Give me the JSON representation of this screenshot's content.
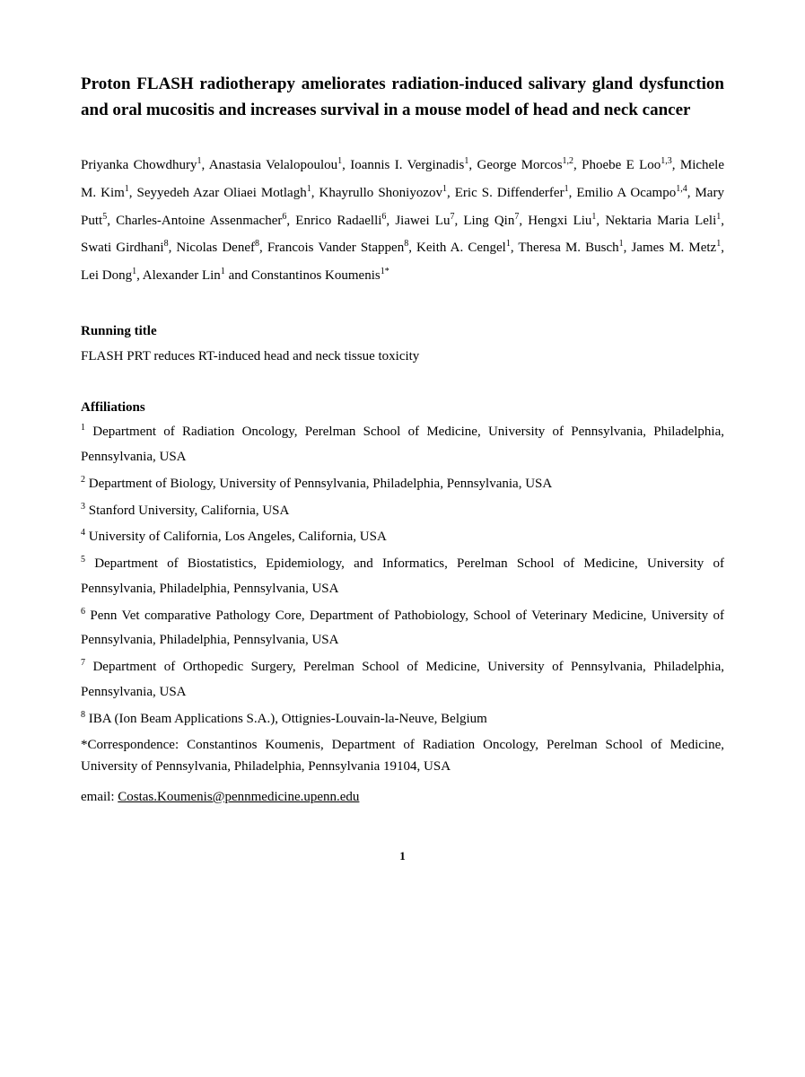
{
  "title": "Proton FLASH radiotherapy ameliorates radiation-induced salivary gland dysfunction and oral mucositis and increases survival in a mouse model of head and neck cancer",
  "authors_html": "Priyanka Chowdhury<sup>1</sup>, Anastasia Velalopoulou<sup>1</sup>, Ioannis I. Verginadis<sup>1</sup>, George Morcos<sup>1,2</sup>, Phoebe E Loo<sup>1,3</sup>, Michele M. Kim<sup>1</sup>, Seyyedeh Azar Oliaei Motlagh<sup>1</sup>, Khayrullo Shoniyozov<sup>1</sup>, Eric S. Diffenderfer<sup>1</sup>, Emilio A Ocampo<sup>1,4</sup>, Mary Putt<sup>5</sup>, Charles-Antoine Assenmacher<sup>6</sup>, Enrico Radaelli<sup>6</sup>, Jiawei Lu<sup>7</sup>, Ling Qin<sup>7</sup>, Hengxi Liu<sup>1</sup>, Nektaria Maria Leli<sup>1</sup>, Swati Girdhani<sup>8</sup>, Nicolas Denef<sup>8</sup>, Francois Vander Stappen<sup>8</sup>, Keith A. Cengel<sup>1</sup>, Theresa M. Busch<sup>1</sup>, James M. Metz<sup>1</sup>, Lei Dong<sup>1</sup>, Alexander Lin<sup>1</sup> and Constantinos Koumenis<sup>1*</sup>",
  "running_title_label": "Running title",
  "running_title": "FLASH PRT reduces RT-induced head and neck tissue toxicity",
  "affiliations_label": "Affiliations",
  "affiliations": [
    {
      "num": "1",
      "text": "Department of Radiation Oncology, Perelman School of Medicine, University of Pennsylvania, Philadelphia, Pennsylvania, USA"
    },
    {
      "num": "2",
      "text": "Department of Biology, University of Pennsylvania, Philadelphia, Pennsylvania, USA"
    },
    {
      "num": "3",
      "text": "Stanford University, California, USA"
    },
    {
      "num": "4",
      "text": "University of California, Los Angeles, California, USA"
    },
    {
      "num": "5",
      "text": "Department of Biostatistics, Epidemiology, and Informatics, Perelman School of Medicine, University of Pennsylvania, Philadelphia, Pennsylvania, USA"
    },
    {
      "num": "6",
      "text": "Penn Vet comparative Pathology Core, Department of Pathobiology, School of Veterinary Medicine, University of Pennsylvania, Philadelphia, Pennsylvania, USA"
    },
    {
      "num": "7",
      "text": "Department of Orthopedic Surgery, Perelman School of Medicine, University of Pennsylvania, Philadelphia, Pennsylvania, USA"
    },
    {
      "num": "8",
      "text": "IBA (Ion Beam Applications S.A.), Ottignies-Louvain-la-Neuve, Belgium"
    }
  ],
  "correspondence": "*Correspondence: Constantinos Koumenis, Department of Radiation Oncology, Perelman School of Medicine, University of Pennsylvania, Philadelphia, Pennsylvania 19104, USA",
  "email_label": "email: ",
  "email": "Costas.Koumenis@pennmedicine.upenn.edu",
  "page_number": "1"
}
